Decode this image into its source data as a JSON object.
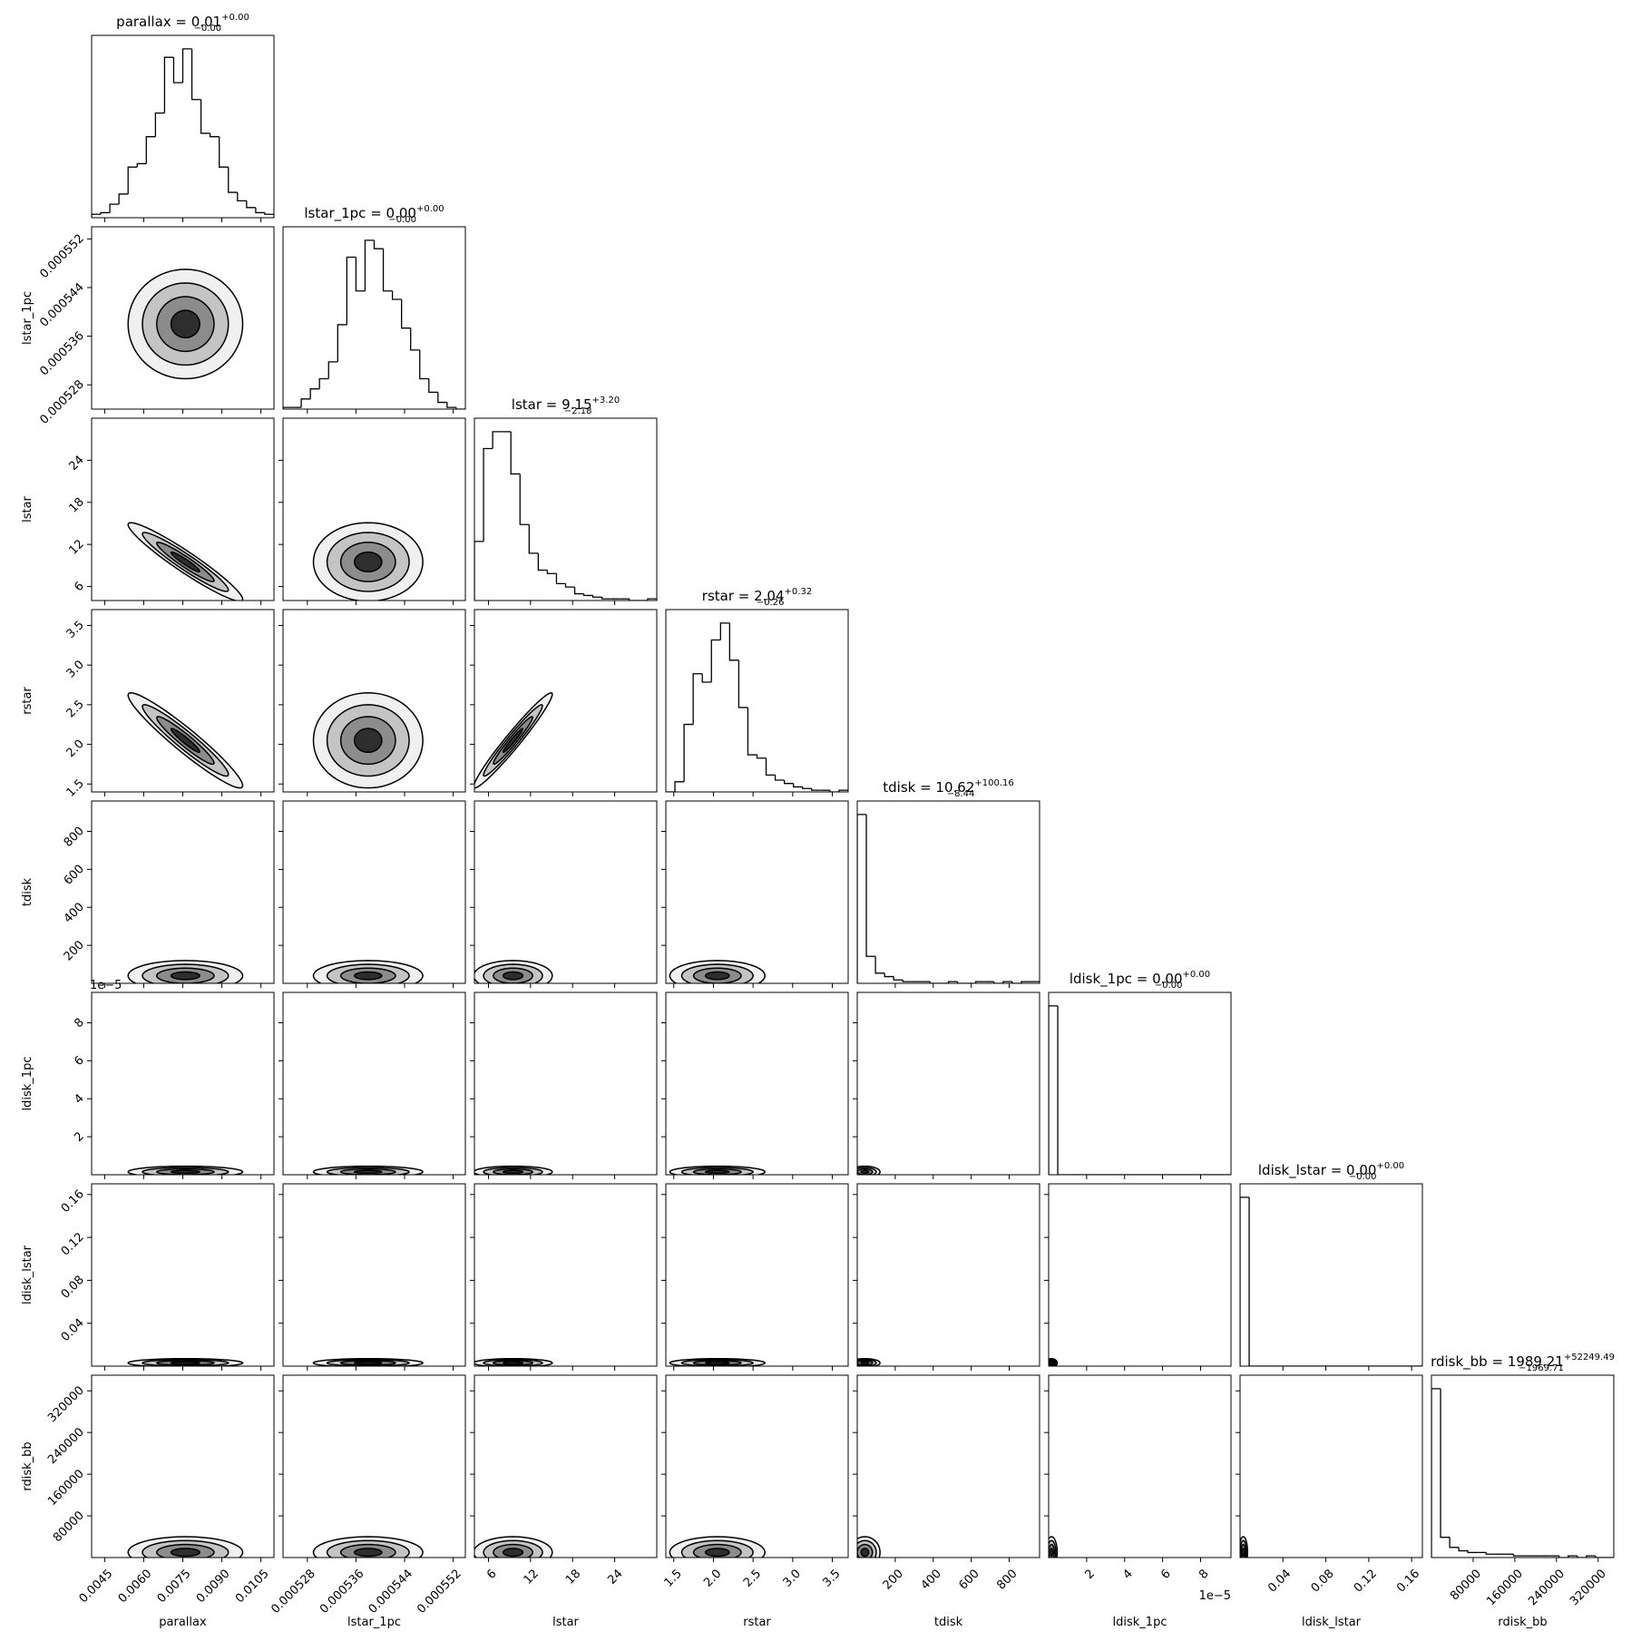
{
  "chart_data": {
    "type": "corner",
    "line_color": "#000000",
    "levels": [
      2,
      1.5,
      1,
      0.5
    ],
    "level_fills": [
      "#f0f0f0",
      "#c4c4c4",
      "#8c8c8c",
      "#2e2e2e"
    ],
    "params": [
      {
        "label": "parallax",
        "title": "parallax = 0.01",
        "title_upper": "+0.00",
        "title_lower": "−0.00",
        "lim": [
          0.004,
          0.011
        ],
        "ticks": [
          0.0045,
          {
            "value": 0.006,
            "label": "0.0060"
          },
          0.0075,
          {
            "value": 0.009,
            "label": "0.0090"
          },
          0.0105
        ],
        "hist": {
          "bins": [
            0.004,
            0.00435,
            0.0047,
            0.00505,
            0.0054,
            0.00575,
            0.0061,
            0.00645,
            0.0068,
            0.00715,
            0.0075,
            0.00785,
            0.0082,
            0.00855,
            0.0089,
            0.00925,
            0.0096,
            0.00995,
            0.0103,
            0.01065,
            0.011
          ],
          "counts": [
            2,
            3,
            8,
            14,
            30,
            32,
            48,
            62,
            95,
            80,
            100,
            70,
            50,
            48,
            30,
            15,
            10,
            6,
            3,
            2
          ]
        }
      },
      {
        "label": "lstar_1pc",
        "title": "lstar_1pc = 0.00",
        "title_upper": "+0.00",
        "title_lower": "−0.00",
        "lim": [
          0.000524,
          0.000554
        ],
        "ticks": [
          0.000528,
          0.000536,
          0.000544,
          0.000552
        ],
        "hist": {
          "bins": [
            0.000524,
            0.0005255,
            0.000527,
            0.0005285,
            0.00053,
            0.0005315,
            0.000533,
            0.0005345,
            0.000536,
            0.0005375,
            0.000539,
            0.0005405,
            0.000542,
            0.0005435,
            0.000545,
            0.0005465,
            0.000548,
            0.0005495,
            0.000551,
            0.0005525,
            0.000554
          ],
          "counts": [
            1,
            1,
            6,
            12,
            18,
            28,
            50,
            90,
            70,
            100,
            95,
            70,
            65,
            48,
            35,
            18,
            10,
            4,
            1,
            0
          ]
        }
      },
      {
        "label": "lstar",
        "title": "lstar = 9.15",
        "title_upper": "+3.20",
        "title_lower": "−2.18",
        "lim": [
          4,
          30
        ],
        "ticks": [
          6,
          12,
          18,
          24
        ],
        "hist": {
          "bins": [
            4,
            5.3,
            6.6,
            7.9,
            9.2,
            10.5,
            11.8,
            13.1,
            14.4,
            15.7,
            17,
            18.3,
            19.6,
            20.9,
            22.2,
            23.5,
            24.8,
            26.1,
            27.4,
            28.7,
            30
          ],
          "counts": [
            35,
            90,
            100,
            100,
            75,
            45,
            28,
            18,
            16,
            10,
            8,
            4,
            3,
            2,
            1,
            1,
            1,
            0,
            0,
            1
          ]
        }
      },
      {
        "label": "rstar",
        "title": "rstar = 2.04",
        "title_upper": "+0.32",
        "title_lower": "−0.26",
        "lim": [
          1.4,
          3.7
        ],
        "ticks": [
          1.5,
          {
            "value": 2,
            "label": "2.0"
          },
          2.5,
          {
            "value": 3,
            "label": "3.0"
          },
          3.5
        ],
        "hist": {
          "bins": [
            1.4,
            1.515,
            1.63,
            1.745,
            1.86,
            1.975,
            2.09,
            2.205,
            2.32,
            2.435,
            2.55,
            2.665,
            2.78,
            2.895,
            3.01,
            3.125,
            3.24,
            3.355,
            3.47,
            3.585,
            3.7
          ],
          "counts": [
            0,
            6,
            40,
            70,
            65,
            90,
            100,
            78,
            50,
            22,
            20,
            10,
            7,
            5,
            3,
            2,
            1,
            1,
            0,
            1
          ]
        }
      },
      {
        "label": "tdisk",
        "title": "tdisk = 10.62",
        "title_upper": "+100.16",
        "title_lower": "−8.44",
        "lim": [
          0,
          960
        ],
        "ticks": [
          200,
          400,
          600,
          800
        ],
        "hist": {
          "bins": [
            0,
            48,
            96,
            144,
            192,
            240,
            288,
            336,
            384,
            432,
            480,
            528,
            576,
            624,
            672,
            720,
            768,
            816,
            864,
            912,
            960
          ],
          "counts": [
            100,
            16,
            6,
            4,
            2,
            1,
            1,
            1,
            0,
            0,
            1,
            0,
            0,
            1,
            1,
            0,
            1,
            0,
            1,
            1
          ]
        }
      },
      {
        "label": "ldisk_1pc",
        "title": "ldisk_1pc = 0.00",
        "title_upper": "+0.00",
        "title_lower": "−0.00",
        "lim": [
          0,
          9.6e-05
        ],
        "offset_text": "1e−5",
        "ticks": [
          {
            "value": 2e-05,
            "label": "2"
          },
          {
            "value": 4e-05,
            "label": "4"
          },
          {
            "value": 6e-05,
            "label": "6"
          },
          {
            "value": 8e-05,
            "label": "8"
          }
        ],
        "hist": {
          "bins": [
            0,
            4.8e-06,
            9.6e-06,
            1.44e-05,
            1.92e-05,
            2.4e-05,
            2.88e-05,
            3.36e-05,
            3.84e-05,
            4.32e-05,
            4.8e-05,
            5.28e-05,
            5.76e-05,
            6.24e-05,
            6.72e-05,
            7.2e-05,
            7.68e-05,
            8.16e-05,
            8.64e-05,
            9.12e-05,
            9.6e-05
          ],
          "counts": [
            100,
            0,
            0,
            0,
            0,
            0,
            0,
            0,
            0,
            0,
            0,
            0,
            0,
            0,
            0,
            0,
            0,
            0,
            0,
            0
          ]
        }
      },
      {
        "label": "ldisk_lstar",
        "title": "ldisk_lstar = 0.00",
        "title_upper": "+0.00",
        "title_lower": "−0.00",
        "lim": [
          0,
          0.17
        ],
        "ticks": [
          0.04,
          0.08,
          0.12,
          0.16
        ],
        "hist": {
          "bins": [
            0,
            0.0085,
            0.017,
            0.0255,
            0.034,
            0.0425,
            0.051,
            0.0595,
            0.068,
            0.0765,
            0.085,
            0.0935,
            0.102,
            0.1105,
            0.119,
            0.1275,
            0.136,
            0.1445,
            0.153,
            0.1615,
            0.17
          ],
          "counts": [
            100,
            0,
            0,
            0,
            0,
            0,
            0,
            0,
            0,
            0,
            0,
            0,
            0,
            0,
            0,
            0,
            0,
            0,
            0,
            0
          ]
        }
      },
      {
        "label": "rdisk_bb",
        "title": "rdisk_bb = 1989.21",
        "title_upper": "+52249.49",
        "title_lower": "−1969.71",
        "lim": [
          0,
          350000
        ],
        "ticks": [
          80000,
          160000,
          240000,
          320000
        ],
        "hist": {
          "bins": [
            0,
            17500,
            35000,
            52500,
            70000,
            87500,
            105000,
            122500,
            140000,
            157500,
            175000,
            192500,
            210000,
            227500,
            245000,
            262500,
            280000,
            297500,
            315000,
            332500,
            350000
          ],
          "counts": [
            100,
            12,
            6,
            4,
            3,
            3,
            2,
            2,
            2,
            1,
            1,
            1,
            1,
            1,
            0,
            1,
            0,
            1,
            0,
            0
          ]
        }
      }
    ],
    "pairs": [
      [],
      [
        {
          "center": [
            0.0076,
            0.000538
          ],
          "sd": [
            0.0011,
            4.5e-06
          ],
          "rho": 0
        }
      ],
      [
        {
          "center": [
            0.0076,
            9.5
          ],
          "sd": [
            0.0011,
            2.8
          ],
          "rho": -0.95
        },
        {
          "center": [
            0.000538,
            9.5
          ],
          "sd": [
            4.5e-06,
            2.8
          ],
          "rho": 0
        }
      ],
      [
        {
          "center": [
            0.0076,
            2.05
          ],
          "sd": [
            0.0011,
            0.3
          ],
          "rho": -0.95
        },
        {
          "center": [
            0.000538,
            2.05
          ],
          "sd": [
            4.5e-06,
            0.3
          ],
          "rho": 0
        },
        {
          "center": [
            9.5,
            2.05
          ],
          "sd": [
            2.8,
            0.3
          ],
          "rho": 0.97
        }
      ],
      [
        {
          "center": [
            0.0076,
            40
          ],
          "sd": [
            0.0011,
            40
          ],
          "rho": 0
        },
        {
          "center": [
            0.000538,
            40
          ],
          "sd": [
            4.5e-06,
            40
          ],
          "rho": 0
        },
        {
          "center": [
            9.5,
            40
          ],
          "sd": [
            2.8,
            40
          ],
          "rho": 0
        },
        {
          "center": [
            2.05,
            40
          ],
          "sd": [
            0.3,
            40
          ],
          "rho": 0
        }
      ],
      [
        {
          "center": [
            0.0076,
            1.5e-06
          ],
          "sd": [
            0.0011,
            1.5e-06
          ],
          "rho": 0
        },
        {
          "center": [
            0.000538,
            1.5e-06
          ],
          "sd": [
            4.5e-06,
            1.5e-06
          ],
          "rho": 0
        },
        {
          "center": [
            9.5,
            1.5e-06
          ],
          "sd": [
            2.8,
            1.5e-06
          ],
          "rho": 0
        },
        {
          "center": [
            2.05,
            1.5e-06
          ],
          "sd": [
            0.3,
            1.5e-06
          ],
          "rho": 0
        },
        {
          "center": [
            40,
            1.5e-06
          ],
          "sd": [
            40,
            1.5e-06
          ],
          "rho": 0
        }
      ],
      [
        {
          "center": [
            0.0076,
            0.003
          ],
          "sd": [
            0.0011,
            0.002
          ],
          "rho": 0
        },
        {
          "center": [
            0.000538,
            0.003
          ],
          "sd": [
            4.5e-06,
            0.002
          ],
          "rho": 0
        },
        {
          "center": [
            9.5,
            0.003
          ],
          "sd": [
            2.8,
            0.002
          ],
          "rho": 0
        },
        {
          "center": [
            2.05,
            0.003
          ],
          "sd": [
            0.3,
            0.002
          ],
          "rho": 0
        },
        {
          "center": [
            40,
            0.003
          ],
          "sd": [
            40,
            0.002
          ],
          "rho": 0
        },
        {
          "center": [
            1.5e-06,
            0.003
          ],
          "sd": [
            1.5e-06,
            0.002
          ],
          "rho": 0
        }
      ],
      [
        {
          "center": [
            0.0076,
            10000
          ],
          "sd": [
            0.0011,
            15000
          ],
          "rho": 0
        },
        {
          "center": [
            0.000538,
            10000
          ],
          "sd": [
            4.5e-06,
            15000
          ],
          "rho": 0
        },
        {
          "center": [
            9.5,
            10000
          ],
          "sd": [
            2.8,
            15000
          ],
          "rho": 0
        },
        {
          "center": [
            2.05,
            10000
          ],
          "sd": [
            0.3,
            15000
          ],
          "rho": 0
        },
        {
          "center": [
            40,
            10000
          ],
          "sd": [
            40,
            15000
          ],
          "rho": 0
        },
        {
          "center": [
            1.5e-06,
            10000
          ],
          "sd": [
            1.5e-06,
            15000
          ],
          "rho": 0
        },
        {
          "center": [
            0.003,
            10000
          ],
          "sd": [
            0.002,
            15000
          ],
          "rho": 0
        }
      ]
    ]
  }
}
